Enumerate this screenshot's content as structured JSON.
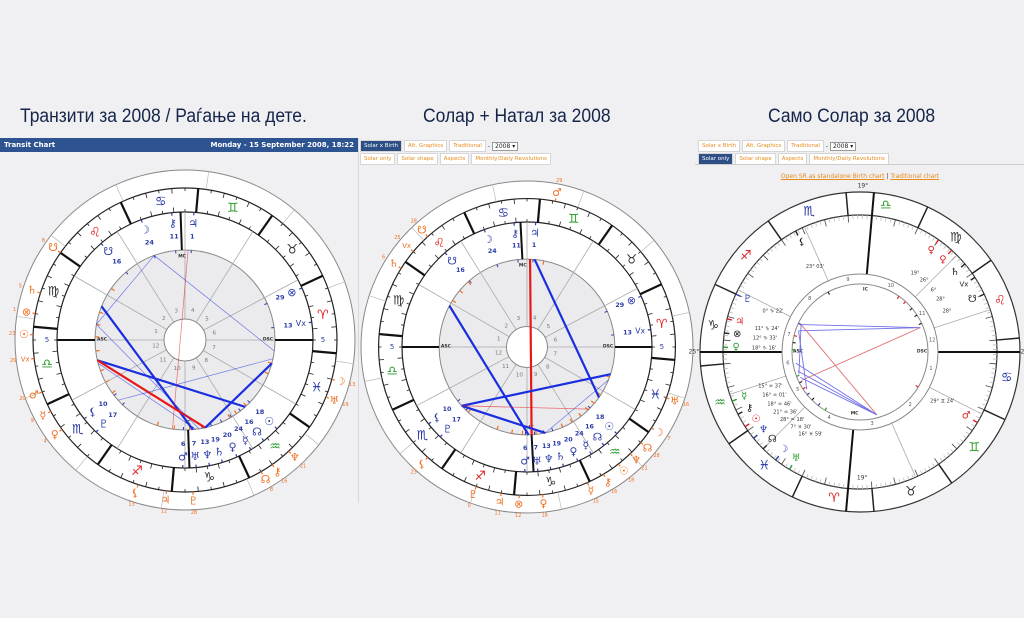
{
  "titles": [
    "Транзити за 2008 / Раѓање на дете.",
    "Солар + Натал за 2008",
    "Само Солар за 2008"
  ],
  "transit_header": {
    "label": "Transit Chart",
    "date": "Monday - 15 September 2008, 18:22"
  },
  "tabs_row1": [
    "Solar x Birth",
    "Alt. Graphics",
    "Traditional"
  ],
  "tabs_row2": [
    "Solar only",
    "Solar shape",
    "Aspects",
    "Monthly/Daily Revolutions"
  ],
  "dash": "-",
  "year_select": "2008",
  "links": {
    "standalone": "Open SR as standalone Birth chart",
    "sep": "|",
    "traditional": "Traditional chart"
  },
  "colors": {
    "fire": "#e02020",
    "earth": "#333333",
    "air": "#2a9a2a",
    "water": "#2233a0",
    "natal": "#2b3ba8",
    "transit": "#f07020",
    "aspect_blue": "#1a2ee0",
    "aspect_red": "#e81818"
  },
  "signs": [
    {
      "glyph": "♈",
      "el": "fire"
    },
    {
      "glyph": "♉",
      "el": "earth"
    },
    {
      "glyph": "♊",
      "el": "air"
    },
    {
      "glyph": "♋",
      "el": "water"
    },
    {
      "glyph": "♌",
      "el": "fire"
    },
    {
      "glyph": "♍",
      "el": "earth"
    },
    {
      "glyph": "♎",
      "el": "air"
    },
    {
      "glyph": "♏",
      "el": "water"
    },
    {
      "glyph": "♐",
      "el": "fire"
    },
    {
      "glyph": "♑",
      "el": "earth"
    },
    {
      "glyph": "♒",
      "el": "air"
    },
    {
      "glyph": "♓",
      "el": "water"
    }
  ],
  "angle_labels": {
    "asc": "ASC",
    "dsc": "DSC",
    "mc": "MC",
    "ic": "IC"
  },
  "charts": [
    {
      "name": "transit-chart",
      "asc_lon": 185,
      "asc_deg": "5",
      "houses": [
        185,
        155,
        127,
        95,
        63,
        33,
        5,
        335,
        307,
        275,
        243,
        213
      ],
      "natal": [
        {
          "g": "☽",
          "lon": 115,
          "d": "24"
        },
        {
          "g": "⚷",
          "lon": 101,
          "d": "11"
        },
        {
          "g": "♃",
          "lon": 91,
          "d": "1"
        },
        {
          "g": "☋",
          "lon": 136,
          "d": "16"
        },
        {
          "g": "⊗",
          "lon": 29,
          "d": "29"
        },
        {
          "g": "Vx",
          "lon": 13,
          "d": "13"
        },
        {
          "g": "⚸",
          "lon": 223,
          "d": "10"
        },
        {
          "g": "♇",
          "lon": 231,
          "d": "17"
        },
        {
          "g": "♂",
          "lon": 274,
          "d": "6"
        },
        {
          "g": "♅",
          "lon": 280,
          "d": "7"
        },
        {
          "g": "♆",
          "lon": 286,
          "d": "13"
        },
        {
          "g": "♄",
          "lon": 292,
          "d": "19"
        },
        {
          "g": "♀",
          "lon": 299,
          "d": "20"
        },
        {
          "g": "☿",
          "lon": 306,
          "d": "24"
        },
        {
          "g": "☊",
          "lon": 313,
          "d": "16"
        },
        {
          "g": "☉",
          "lon": 321,
          "d": "18"
        }
      ],
      "transit": [
        {
          "g": "☋",
          "lon": 150,
          "d": "8"
        },
        {
          "g": "♄",
          "lon": 167,
          "d": "5"
        },
        {
          "g": "⊗",
          "lon": 175,
          "d": "1"
        },
        {
          "g": "☉",
          "lon": 183,
          "d": "23"
        },
        {
          "g": "Vx",
          "lon": 192,
          "d": "29"
        },
        {
          "g": "♂",
          "lon": 205,
          "d": "20"
        },
        {
          "g": "☿",
          "lon": 213,
          "d": "9"
        },
        {
          "g": "♀",
          "lon": 221,
          "d": "4"
        },
        {
          "g": "⚸",
          "lon": 257,
          "d": "13"
        },
        {
          "g": "♇",
          "lon": 278,
          "d": "28"
        },
        {
          "g": "♃",
          "lon": 268,
          "d": "12"
        },
        {
          "g": "☽",
          "lon": 350,
          "d": "13"
        },
        {
          "g": "♅",
          "lon": 343,
          "d": "19"
        },
        {
          "g": "♆",
          "lon": 318,
          "d": "21"
        },
        {
          "g": "⚷",
          "lon": 310,
          "d": "16"
        },
        {
          "g": "☊",
          "lon": 305,
          "d": "8"
        }
      ],
      "house_numbers": [
        "1",
        "2",
        "3",
        "4",
        "5",
        "6",
        "7",
        "8",
        "9",
        "10",
        "11",
        "12"
      ],
      "aspects": [
        {
          "a": 163,
          "b": 280,
          "c": "blue",
          "w": 2.2
        },
        {
          "a": 198,
          "b": 317,
          "c": "blue",
          "w": 2.2
        },
        {
          "a": 198,
          "b": 288,
          "c": "red",
          "w": 2.2
        },
        {
          "a": 288,
          "b": 350,
          "c": "blue",
          "w": 2.2
        },
        {
          "a": 115,
          "b": 358,
          "c": "blue",
          "w": 0.7
        },
        {
          "a": 115,
          "b": 175,
          "c": "blue",
          "w": 0.7
        },
        {
          "a": 175,
          "b": 284,
          "c": "blue",
          "w": 0.7
        },
        {
          "a": 227,
          "b": 353,
          "c": "blue",
          "w": 0.7
        },
        {
          "a": 93,
          "b": 267,
          "c": "red",
          "w": 0.7
        },
        {
          "a": 200,
          "b": 282,
          "c": "blue",
          "w": 0.7
        }
      ]
    },
    {
      "name": "solar-natal-chart",
      "asc_lon": 185,
      "asc_deg": "5",
      "houses": [
        185,
        155,
        127,
        95,
        63,
        33,
        5,
        335,
        307,
        275,
        243,
        213
      ],
      "natal": [
        {
          "g": "☽",
          "lon": 115,
          "d": "24"
        },
        {
          "g": "⚷",
          "lon": 101,
          "d": "11"
        },
        {
          "g": "♃",
          "lon": 91,
          "d": "1"
        },
        {
          "g": "☋",
          "lon": 136,
          "d": "16"
        },
        {
          "g": "⊗",
          "lon": 29,
          "d": "29"
        },
        {
          "g": "Vx",
          "lon": 13,
          "d": "13"
        },
        {
          "g": "⚸",
          "lon": 223,
          "d": "10"
        },
        {
          "g": "♇",
          "lon": 231,
          "d": "17"
        },
        {
          "g": "♂",
          "lon": 274,
          "d": "6"
        },
        {
          "g": "♅",
          "lon": 280,
          "d": "7"
        },
        {
          "g": "♆",
          "lon": 286,
          "d": "13"
        },
        {
          "g": "♄",
          "lon": 292,
          "d": "19"
        },
        {
          "g": "♀",
          "lon": 299,
          "d": "20"
        },
        {
          "g": "☿",
          "lon": 306,
          "d": "24"
        },
        {
          "g": "☊",
          "lon": 313,
          "d": "16"
        },
        {
          "g": "☉",
          "lon": 321,
          "d": "18"
        }
      ],
      "transit": [
        {
          "g": "♂",
          "lon": 84,
          "d": "29"
        },
        {
          "g": "☋",
          "lon": 137,
          "d": "28"
        },
        {
          "g": "Vx",
          "lon": 145,
          "d": "25"
        },
        {
          "g": "♄",
          "lon": 153,
          "d": "6"
        },
        {
          "g": "⚸",
          "lon": 233,
          "d": "23"
        },
        {
          "g": "♅",
          "lon": 345,
          "d": "16"
        },
        {
          "g": "☽",
          "lon": 332,
          "d": "7"
        },
        {
          "g": "☊",
          "lon": 325,
          "d": "28"
        },
        {
          "g": "♆",
          "lon": 319,
          "d": "21"
        },
        {
          "g": "☉",
          "lon": 313,
          "d": "18"
        },
        {
          "g": "⚷",
          "lon": 306,
          "d": "16"
        },
        {
          "g": "☿",
          "lon": 299,
          "d": "15"
        },
        {
          "g": "♀",
          "lon": 281,
          "d": "18"
        },
        {
          "g": "⊗",
          "lon": 272,
          "d": "12"
        },
        {
          "g": "♃",
          "lon": 265,
          "d": "11"
        },
        {
          "g": "♇",
          "lon": 255,
          "d": "0"
        }
      ],
      "house_numbers": [
        "1",
        "2",
        "3",
        "4",
        "5",
        "6",
        "7",
        "8",
        "9",
        "10",
        "11",
        "12"
      ],
      "aspects": [
        {
          "a": 93,
          "b": 278,
          "c": "red",
          "w": 2.2
        },
        {
          "a": 90,
          "b": 330,
          "c": "blue",
          "w": 2.2
        },
        {
          "a": 157,
          "b": 276,
          "c": "blue",
          "w": 2.2
        },
        {
          "a": 227,
          "b": 347,
          "c": "blue",
          "w": 2.2
        },
        {
          "a": 227,
          "b": 287,
          "c": "blue",
          "w": 2.2
        },
        {
          "a": 227,
          "b": 320,
          "c": "red",
          "w": 0.8
        },
        {
          "a": 287,
          "b": 343,
          "c": "blue",
          "w": 0.7
        }
      ]
    },
    {
      "name": "solar-only-chart",
      "asc_lon": 295,
      "asc_deg": "25°",
      "mc_deg": "19°",
      "houses": [
        295,
        268,
        229,
        200,
        160,
        133,
        115,
        88,
        49,
        20,
        340,
        313
      ],
      "house_numbers": [
        "1",
        "2",
        "3",
        "4",
        "5",
        "6",
        "7",
        "8",
        "9",
        "10",
        "11",
        "12"
      ],
      "planets": [
        {
          "g": "⚸",
          "lon": 233,
          "d": "23° 03'",
          "color": "#222"
        },
        {
          "g": "♇",
          "lon": 270,
          "d": "0° ♑ 22'",
          "color": "#2b3ba8"
        },
        {
          "g": "♃",
          "lon": 281,
          "d": "11° ♑ 24'",
          "color": "#e02020"
        },
        {
          "g": "⊗",
          "lon": 287,
          "d": "12° ♑ 33'",
          "color": "#222"
        },
        {
          "g": "♀",
          "lon": 293,
          "d": "18° ♑ 16'",
          "color": "#2a9a2a"
        },
        {
          "g": "☿",
          "lon": 316,
          "d": "15° ♒ 37'",
          "color": "#2a9a2a"
        },
        {
          "g": "⚷",
          "lon": 322,
          "d": "16° ♒ 01'",
          "color": "#222"
        },
        {
          "g": "☉",
          "lon": 328,
          "d": "18° ♒ 46'",
          "color": "#e02020"
        },
        {
          "g": "♆",
          "lon": 334,
          "d": "21° ♒ 36'",
          "color": "#2b3ba8"
        },
        {
          "g": "☊",
          "lon": 340,
          "d": "28° ♒ 18'",
          "color": "#222"
        },
        {
          "g": "☽",
          "lon": 347,
          "d": "7° ♓ 30'",
          "color": "#2b3ba8"
        },
        {
          "g": "♅",
          "lon": 354,
          "d": "16° ♓ 59'",
          "color": "#2a9a2a"
        },
        {
          "g": "♄",
          "lon": 155,
          "d": "6°",
          "color": "#222"
        },
        {
          "g": "Vx",
          "lon": 148,
          "d": "28°",
          "color": "#222"
        },
        {
          "g": "☋",
          "lon": 140,
          "d": "28°",
          "color": "#222"
        },
        {
          "g": "♀",
          "lon": 163,
          "d": "26°",
          "color": "#e02020"
        },
        {
          "g": "♀",
          "lon": 170,
          "d": "19°",
          "color": "#e02020"
        },
        {
          "g": "♂",
          "lon": 84,
          "d": "29° ♊ 24'",
          "color": "#e02020"
        }
      ],
      "aspects": [
        {
          "a": 137,
          "b": 270,
          "c": "blue",
          "w": 0.9
        },
        {
          "a": 137,
          "b": 276,
          "c": "blue",
          "w": 0.9
        },
        {
          "a": 137,
          "b": 321,
          "c": "red",
          "w": 0.9
        },
        {
          "a": 270,
          "b": 40,
          "c": "red",
          "w": 0.9
        },
        {
          "a": 40,
          "b": 305,
          "c": "blue",
          "w": 0.9
        },
        {
          "a": 40,
          "b": 312,
          "c": "blue",
          "w": 0.9
        },
        {
          "a": 40,
          "b": 318,
          "c": "blue",
          "w": 0.9
        },
        {
          "a": 270,
          "b": 315,
          "c": "blue",
          "w": 0.9
        },
        {
          "a": 276,
          "b": 330,
          "c": "blue",
          "w": 0.9
        }
      ]
    }
  ]
}
